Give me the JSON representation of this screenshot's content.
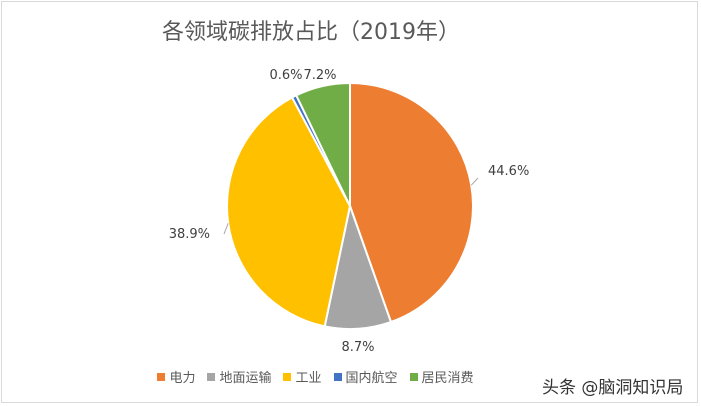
{
  "chart_data": {
    "type": "pie",
    "title": "各领域碳排放占比（2019年）",
    "categories": [
      "电力",
      "地面运输",
      "工业",
      "国内航空",
      "居民消费"
    ],
    "values": [
      44.6,
      8.7,
      38.9,
      0.6,
      7.2
    ],
    "data_labels": [
      "44.6%",
      "8.7%",
      "38.9%",
      "0.6%",
      "7.2%"
    ],
    "colors": [
      "#ed7d31",
      "#a5a5a5",
      "#ffc000",
      "#4472c4",
      "#70ad47"
    ],
    "legend_position": "bottom"
  },
  "watermark": "头条 @脑洞知识局"
}
